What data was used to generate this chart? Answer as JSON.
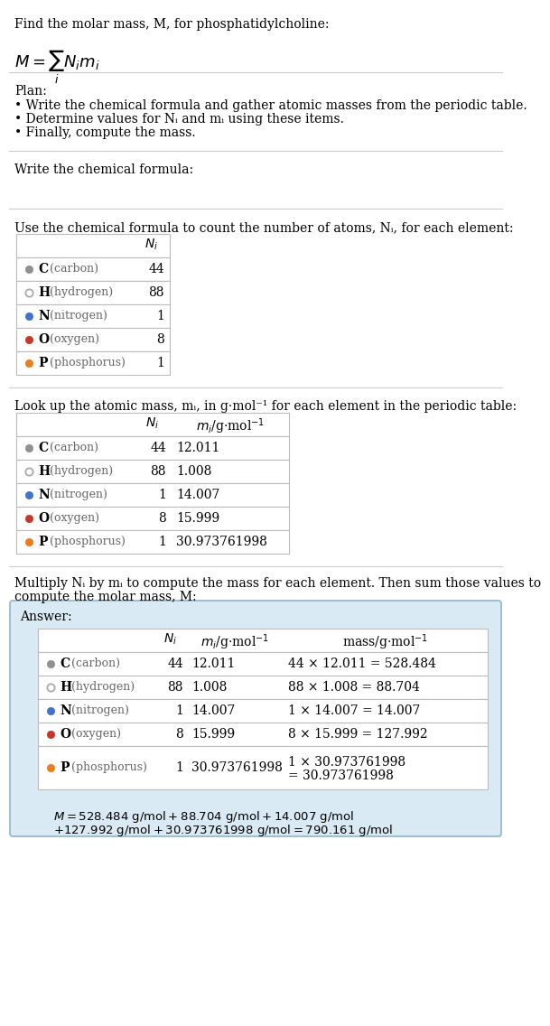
{
  "title_line1": "Find the molar mass, M, for phosphatidylcholine:",
  "plan_title": "Plan:",
  "plan_bullets": [
    "• Write the chemical formula and gather atomic masses from the periodic table.",
    "• Determine values for Nᵢ and mᵢ using these items.",
    "• Finally, compute the mass."
  ],
  "section2_title": "Write the chemical formula:",
  "section3_title": "Use the chemical formula to count the number of atoms, Nᵢ, for each element:",
  "section4_title": "Look up the atomic mass, mᵢ, in g·mol⁻¹ for each element in the periodic table:",
  "section5_title1": "Multiply Nᵢ by mᵢ to compute the mass for each element. Then sum those values to",
  "section5_title2": "compute the molar mass, M:",
  "elements": [
    "C",
    "H",
    "N",
    "O",
    "P"
  ],
  "element_full": [
    "carbon",
    "hydrogen",
    "nitrogen",
    "oxygen",
    "phosphorus"
  ],
  "dot_colors": [
    "#909090",
    "none",
    "#4472c4",
    "#c0392b",
    "#e67e22"
  ],
  "dot_edge_colors": [
    "#909090",
    "#aaaaaa",
    "#4472c4",
    "#c0392b",
    "#e67e22"
  ],
  "Ni": [
    44,
    88,
    1,
    8,
    1
  ],
  "mi": [
    "12.011",
    "1.008",
    "14.007",
    "15.999",
    "30.973761998"
  ],
  "mass_expr_line1": [
    "44 × 12.011 = 528.484",
    "88 × 1.008 = 88.704",
    "1 × 14.007 = 14.007",
    "8 × 15.999 = 127.992",
    "1 × 30.973761998"
  ],
  "mass_expr_line2": [
    "",
    "",
    "",
    "",
    "= 30.973761998"
  ],
  "final_eq_line1": "M = 528.484 g/mol + 88.704 g/mol + 14.007 g/mol",
  "final_eq_line2": "+ 127.992 g/mol + 30.973761998 g/mol = 790.161 g/mol",
  "answer_box_color": "#daeaf5",
  "answer_box_edge": "#99bbcc",
  "table_border_color": "#bbbbbb",
  "bg_color": "#ffffff",
  "separator_color": "#cccccc",
  "text_color": "#000000",
  "subtle_text_color": "#666666"
}
